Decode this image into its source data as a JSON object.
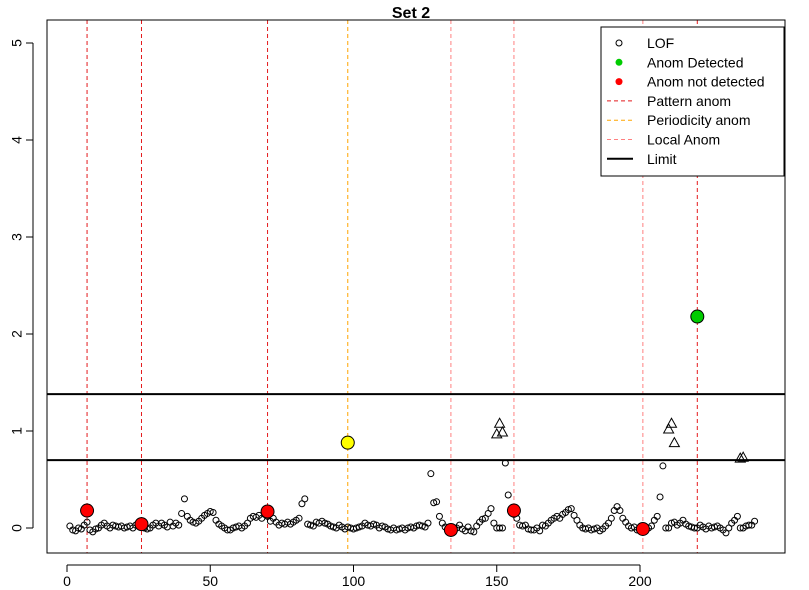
{
  "chart_data": {
    "type": "scatter",
    "title": "Set 2",
    "xlabel": "",
    "ylabel": "",
    "xlim": [
      -5,
      245
    ],
    "ylim": [
      -0.15,
      5.2
    ],
    "x_ticks": [
      0,
      50,
      100,
      150,
      200
    ],
    "y_ticks": [
      0,
      1,
      2,
      3,
      4,
      5
    ],
    "colors": {
      "pattern": "#e41a1c",
      "periodicity": "#ffa500",
      "local": "#ff8080",
      "detected": "#00cc00",
      "not_detected": "#ff0000",
      "periodic_point": "#ffff00"
    },
    "limits": [
      0.7,
      1.38
    ],
    "pattern_anom_x": [
      7,
      26,
      70,
      220
    ],
    "periodicity_anom_x": [
      98
    ],
    "local_anom_x": [
      134,
      156,
      201
    ],
    "lof_points": [
      [
        1,
        0.02
      ],
      [
        2,
        -0.02
      ],
      [
        3,
        -0.03
      ],
      [
        4,
        0.0
      ],
      [
        5,
        -0.01
      ],
      [
        6,
        0.03
      ],
      [
        7,
        0.06
      ],
      [
        8,
        -0.02
      ],
      [
        9,
        -0.04
      ],
      [
        10,
        -0.01
      ],
      [
        11,
        0.0
      ],
      [
        12,
        0.03
      ],
      [
        13,
        0.05
      ],
      [
        14,
        0.02
      ],
      [
        15,
        0.0
      ],
      [
        16,
        0.03
      ],
      [
        17,
        0.02
      ],
      [
        18,
        0.01
      ],
      [
        19,
        0.02
      ],
      [
        20,
        0.0
      ],
      [
        21,
        0.01
      ],
      [
        22,
        0.02
      ],
      [
        23,
        0.0
      ],
      [
        24,
        0.03
      ],
      [
        25,
        0.02
      ],
      [
        26,
        0.04
      ],
      [
        27,
        0.0
      ],
      [
        28,
        -0.01
      ],
      [
        29,
        0.0
      ],
      [
        30,
        0.03
      ],
      [
        31,
        0.05
      ],
      [
        32,
        0.02
      ],
      [
        33,
        0.05
      ],
      [
        34,
        0.03
      ],
      [
        35,
        0.01
      ],
      [
        36,
        0.06
      ],
      [
        37,
        0.02
      ],
      [
        38,
        0.05
      ],
      [
        39,
        0.03
      ],
      [
        40,
        0.15
      ],
      [
        41,
        0.3
      ],
      [
        42,
        0.12
      ],
      [
        43,
        0.08
      ],
      [
        44,
        0.06
      ],
      [
        45,
        0.05
      ],
      [
        46,
        0.07
      ],
      [
        47,
        0.1
      ],
      [
        48,
        0.13
      ],
      [
        49,
        0.15
      ],
      [
        50,
        0.17
      ],
      [
        51,
        0.16
      ],
      [
        52,
        0.08
      ],
      [
        53,
        0.04
      ],
      [
        54,
        0.02
      ],
      [
        55,
        0.0
      ],
      [
        56,
        -0.02
      ],
      [
        57,
        -0.02
      ],
      [
        58,
        0.0
      ],
      [
        59,
        0.01
      ],
      [
        60,
        0.02
      ],
      [
        61,
        0.0
      ],
      [
        62,
        0.02
      ],
      [
        63,
        0.05
      ],
      [
        64,
        0.1
      ],
      [
        65,
        0.12
      ],
      [
        66,
        0.11
      ],
      [
        67,
        0.13
      ],
      [
        68,
        0.1
      ],
      [
        69,
        0.14
      ],
      [
        70,
        0.12
      ],
      [
        71,
        0.07
      ],
      [
        72,
        0.1
      ],
      [
        73,
        0.06
      ],
      [
        74,
        0.03
      ],
      [
        75,
        0.05
      ],
      [
        76,
        0.04
      ],
      [
        77,
        0.06
      ],
      [
        78,
        0.04
      ],
      [
        79,
        0.06
      ],
      [
        80,
        0.08
      ],
      [
        81,
        0.1
      ],
      [
        82,
        0.25
      ],
      [
        83,
        0.3
      ],
      [
        84,
        0.04
      ],
      [
        85,
        0.03
      ],
      [
        86,
        0.02
      ],
      [
        87,
        0.06
      ],
      [
        88,
        0.05
      ],
      [
        89,
        0.07
      ],
      [
        90,
        0.05
      ],
      [
        91,
        0.04
      ],
      [
        92,
        0.02
      ],
      [
        93,
        0.01
      ],
      [
        94,
        0.0
      ],
      [
        95,
        0.03
      ],
      [
        96,
        0.01
      ],
      [
        97,
        -0.01
      ],
      [
        98,
        0.01
      ],
      [
        99,
        0.0
      ],
      [
        100,
        -0.01
      ],
      [
        101,
        0.0
      ],
      [
        102,
        0.01
      ],
      [
        103,
        0.02
      ],
      [
        104,
        0.05
      ],
      [
        105,
        0.03
      ],
      [
        106,
        0.02
      ],
      [
        107,
        0.04
      ],
      [
        108,
        0.03
      ],
      [
        109,
        0.0
      ],
      [
        110,
        0.02
      ],
      [
        111,
        0.01
      ],
      [
        112,
        -0.01
      ],
      [
        113,
        -0.02
      ],
      [
        114,
        0.0
      ],
      [
        115,
        -0.02
      ],
      [
        116,
        -0.01
      ],
      [
        117,
        0.0
      ],
      [
        118,
        -0.02
      ],
      [
        119,
        0.0
      ],
      [
        120,
        0.01
      ],
      [
        121,
        0.0
      ],
      [
        122,
        0.02
      ],
      [
        123,
        0.03
      ],
      [
        124,
        0.02
      ],
      [
        125,
        0.01
      ],
      [
        126,
        0.05
      ],
      [
        127,
        0.56
      ],
      [
        128,
        0.26
      ],
      [
        129,
        0.27
      ],
      [
        130,
        0.12
      ],
      [
        131,
        0.05
      ],
      [
        132,
        0.01
      ],
      [
        133,
        0.0
      ],
      [
        134,
        -0.02
      ],
      [
        135,
        0.0
      ],
      [
        136,
        0.0
      ],
      [
        137,
        0.03
      ],
      [
        138,
        -0.01
      ],
      [
        139,
        -0.03
      ],
      [
        140,
        0.01
      ],
      [
        141,
        -0.03
      ],
      [
        142,
        -0.04
      ],
      [
        143,
        0.02
      ],
      [
        144,
        0.06
      ],
      [
        145,
        0.09
      ],
      [
        146,
        0.1
      ],
      [
        147,
        0.15
      ],
      [
        148,
        0.2
      ],
      [
        149,
        0.05
      ],
      [
        150,
        0.0
      ],
      [
        151,
        0.0
      ],
      [
        152,
        0.0
      ],
      [
        153,
        0.67
      ],
      [
        154,
        0.34
      ],
      [
        155,
        0.2
      ],
      [
        156,
        0.14
      ],
      [
        157,
        0.1
      ],
      [
        158,
        0.03
      ],
      [
        159,
        0.02
      ],
      [
        160,
        0.03
      ],
      [
        161,
        -0.01
      ],
      [
        162,
        -0.02
      ],
      [
        163,
        -0.02
      ],
      [
        164,
        0.0
      ],
      [
        165,
        -0.03
      ],
      [
        166,
        0.03
      ],
      [
        167,
        0.02
      ],
      [
        168,
        0.05
      ],
      [
        169,
        0.08
      ],
      [
        170,
        0.1
      ],
      [
        171,
        0.12
      ],
      [
        172,
        0.1
      ],
      [
        173,
        0.14
      ],
      [
        174,
        0.16
      ],
      [
        175,
        0.19
      ],
      [
        176,
        0.2
      ],
      [
        177,
        0.13
      ],
      [
        178,
        0.08
      ],
      [
        179,
        0.03
      ],
      [
        180,
        0.0
      ],
      [
        181,
        -0.01
      ],
      [
        182,
        0.0
      ],
      [
        183,
        -0.02
      ],
      [
        184,
        -0.01
      ],
      [
        185,
        0.0
      ],
      [
        186,
        -0.03
      ],
      [
        187,
        -0.01
      ],
      [
        188,
        0.02
      ],
      [
        189,
        0.05
      ],
      [
        190,
        0.1
      ],
      [
        191,
        0.18
      ],
      [
        192,
        0.22
      ],
      [
        193,
        0.18
      ],
      [
        194,
        0.1
      ],
      [
        195,
        0.06
      ],
      [
        196,
        0.02
      ],
      [
        197,
        0.0
      ],
      [
        198,
        0.01
      ],
      [
        199,
        -0.02
      ],
      [
        200,
        0.0
      ],
      [
        201,
        0.0
      ],
      [
        202,
        -0.01
      ],
      [
        203,
        0.0
      ],
      [
        204,
        0.02
      ],
      [
        205,
        0.08
      ],
      [
        206,
        0.12
      ],
      [
        207,
        0.32
      ],
      [
        208,
        0.64
      ],
      [
        209,
        0.0
      ],
      [
        210,
        0.0
      ],
      [
        211,
        0.05
      ],
      [
        212,
        0.06
      ],
      [
        213,
        0.03
      ],
      [
        214,
        0.05
      ],
      [
        215,
        0.08
      ],
      [
        216,
        0.04
      ],
      [
        217,
        0.02
      ],
      [
        218,
        0.01
      ],
      [
        219,
        0.0
      ],
      [
        220,
        0.0
      ],
      [
        221,
        0.03
      ],
      [
        222,
        0.01
      ],
      [
        223,
        -0.01
      ],
      [
        224,
        0.02
      ],
      [
        225,
        0.0
      ],
      [
        226,
        0.01
      ],
      [
        227,
        0.02
      ],
      [
        228,
        0.0
      ],
      [
        229,
        -0.02
      ],
      [
        230,
        -0.05
      ],
      [
        231,
        0.0
      ],
      [
        232,
        0.05
      ],
      [
        233,
        0.08
      ],
      [
        234,
        0.12
      ],
      [
        235,
        0.0
      ],
      [
        236,
        0.0
      ],
      [
        237,
        0.02
      ],
      [
        238,
        0.03
      ],
      [
        239,
        0.03
      ],
      [
        240,
        0.07
      ]
    ],
    "triangle_points": [
      [
        150,
        0.97
      ],
      [
        151,
        1.08
      ],
      [
        152,
        0.99
      ],
      [
        210,
        1.02
      ],
      [
        211,
        1.08
      ],
      [
        212,
        0.88
      ],
      [
        235,
        0.72
      ],
      [
        236,
        0.73
      ]
    ],
    "not_detected_points": [
      [
        7,
        0.18
      ],
      [
        26,
        0.04
      ],
      [
        70,
        0.17
      ],
      [
        134,
        -0.02
      ],
      [
        156,
        0.18
      ],
      [
        201,
        -0.01
      ]
    ],
    "periodic_points": [
      [
        98,
        0.88
      ]
    ],
    "detected_points": [
      [
        220,
        2.18
      ]
    ],
    "legend": {
      "position": "top-right",
      "entries": [
        {
          "label": "LOF",
          "kind": "open-circle",
          "color": "#000000"
        },
        {
          "label": "Anom Detected",
          "kind": "filled-circle",
          "color": "#00cc00"
        },
        {
          "label": "Anom not detected",
          "kind": "filled-circle",
          "color": "#ff0000"
        },
        {
          "label": "Pattern anom",
          "kind": "dashed-line",
          "color": "#e41a1c"
        },
        {
          "label": "Periodicity anom",
          "kind": "dashed-line",
          "color": "#ffa500"
        },
        {
          "label": "Local Anom",
          "kind": "dashed-line",
          "color": "#ff8080"
        },
        {
          "label": "Limit",
          "kind": "solid-line",
          "color": "#000000"
        }
      ]
    }
  }
}
